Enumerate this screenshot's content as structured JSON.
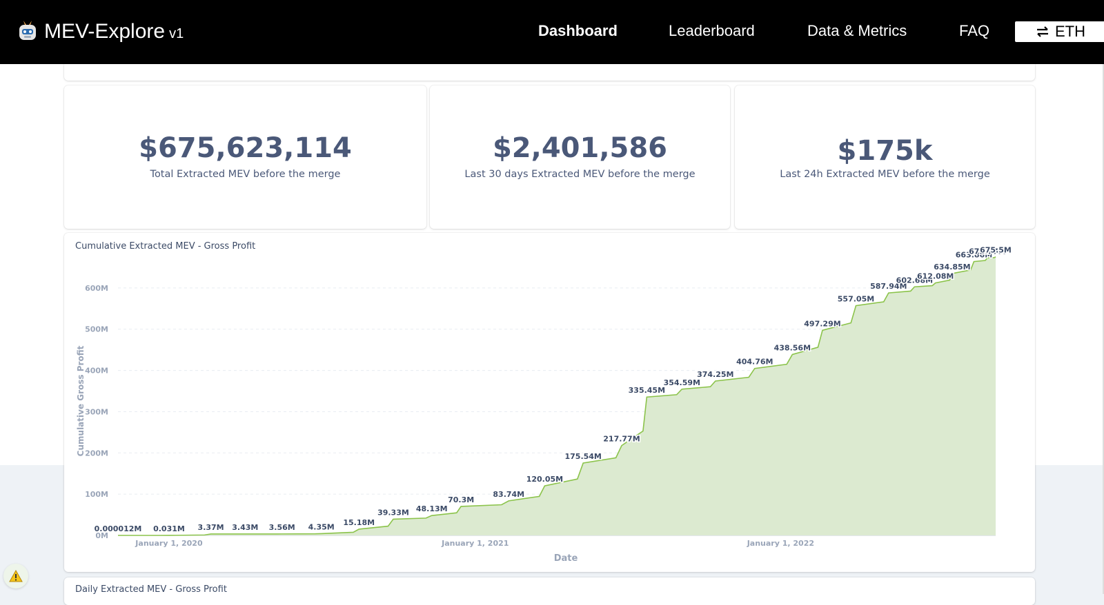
{
  "header": {
    "brand_name": "MEV-Explore",
    "brand_version": "v1",
    "nav": {
      "dashboard": "Dashboard",
      "leaderboard": "Leaderboard",
      "data_metrics": "Data & Metrics",
      "faq": "FAQ"
    },
    "network_label": "ETH"
  },
  "stats": {
    "total": {
      "value": "$675,623,114",
      "label": "Total Extracted MEV before the merge"
    },
    "last30": {
      "value": "$2,401,586",
      "label": "Last 30 days Extracted MEV before the merge"
    },
    "last24": {
      "value": "$175k",
      "label": "Last 24h Extracted MEV before the merge"
    }
  },
  "cumulative_chart": {
    "title": "Cumulative Extracted MEV - Gross Profit"
  },
  "daily_chart": {
    "title": "Daily Extracted MEV - Gross Profit"
  },
  "colors": {
    "line": "#8bc34a",
    "area": "#dcead0",
    "stat_text": "#4a5878",
    "warning": "#f5c518"
  },
  "icons": {
    "logo": "robot-logo-icon",
    "swap": "swap-arrows-icon",
    "warning": "warning-icon"
  },
  "chart_data": {
    "type": "area",
    "title": "Cumulative Extracted MEV - Gross Profit",
    "xlabel": "Date",
    "ylabel": "Cumulative Gross Profit",
    "yticks": [
      "0M",
      "100M",
      "200M",
      "300M",
      "400M",
      "500M",
      "600M"
    ],
    "ylim": [
      0,
      700
    ],
    "xticks": [
      {
        "date": "2020-01-01",
        "label": "January 1, 2020"
      },
      {
        "date": "2021-01-01",
        "label": "January 1, 2021"
      },
      {
        "date": "2022-01-01",
        "label": "January 1, 2022"
      }
    ],
    "xlim": [
      "2019-11-01",
      "2022-09-15"
    ],
    "grid": true,
    "points": [
      {
        "date": "2019-11-01",
        "value": 1.2e-05,
        "label": "0.000012M"
      },
      {
        "date": "2020-01-01",
        "value": 0.031,
        "label": "0.031M"
      },
      {
        "date": "2020-02-20",
        "value": 3.37,
        "label": "3.37M"
      },
      {
        "date": "2020-04-01",
        "value": 3.43,
        "label": "3.43M"
      },
      {
        "date": "2020-05-15",
        "value": 3.56,
        "label": "3.56M"
      },
      {
        "date": "2020-07-01",
        "value": 4.35,
        "label": "4.35M"
      },
      {
        "date": "2020-08-15",
        "value": 15.18,
        "label": "15.18M"
      },
      {
        "date": "2020-09-25",
        "value": 39.33,
        "label": "39.33M"
      },
      {
        "date": "2020-11-10",
        "value": 48.13,
        "label": "48.13M"
      },
      {
        "date": "2020-12-15",
        "value": 70.3,
        "label": "70.3M"
      },
      {
        "date": "2021-02-10",
        "value": 83.74,
        "label": "83.74M"
      },
      {
        "date": "2021-03-25",
        "value": 120.05,
        "label": "120.05M"
      },
      {
        "date": "2021-05-10",
        "value": 175.54,
        "label": "175.54M"
      },
      {
        "date": "2021-06-25",
        "value": 217.77,
        "label": "217.77M"
      },
      {
        "date": "2021-07-25",
        "value": 335.45,
        "label": "335.45M"
      },
      {
        "date": "2021-09-05",
        "value": 354.59,
        "label": "354.59M"
      },
      {
        "date": "2021-10-15",
        "value": 374.25,
        "label": "374.25M"
      },
      {
        "date": "2021-12-01",
        "value": 404.76,
        "label": "404.76M"
      },
      {
        "date": "2022-01-15",
        "value": 438.56,
        "label": "438.56M"
      },
      {
        "date": "2022-02-20",
        "value": 497.29,
        "label": "497.29M"
      },
      {
        "date": "2022-04-01",
        "value": 557.05,
        "label": "557.05M"
      },
      {
        "date": "2022-05-10",
        "value": 587.94,
        "label": "587.94M"
      },
      {
        "date": "2022-06-10",
        "value": 602.68,
        "label": "602.68M"
      },
      {
        "date": "2022-07-05",
        "value": 612.08,
        "label": "612.08M"
      },
      {
        "date": "2022-07-25",
        "value": 634.85,
        "label": "634.85M"
      },
      {
        "date": "2022-08-20",
        "value": 663.86,
        "label": "663.86M"
      },
      {
        "date": "2022-09-05",
        "value": 672.77,
        "label": "672.77M"
      },
      {
        "date": "2022-09-15",
        "value": 675.5,
        "label": "675.5M"
      }
    ]
  }
}
